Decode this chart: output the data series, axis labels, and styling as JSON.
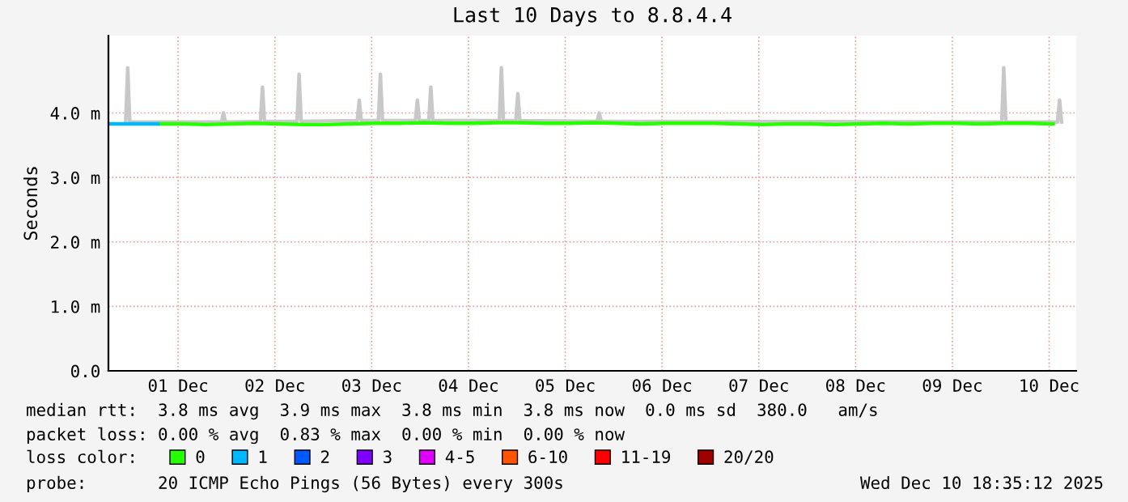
{
  "chart_data": {
    "type": "line",
    "title": "Last 10 Days to 8.8.4.4",
    "ylabel": "Seconds",
    "xlim": [
      "2025-11-30T18:43",
      "2025-12-10T18:43"
    ],
    "xticks": [
      {
        "value": "2025-12-01T12:00",
        "label": "01 Dec"
      },
      {
        "value": "2025-12-02T12:00",
        "label": "02 Dec"
      },
      {
        "value": "2025-12-03T12:00",
        "label": "03 Dec"
      },
      {
        "value": "2025-12-04T12:00",
        "label": "04 Dec"
      },
      {
        "value": "2025-12-05T12:00",
        "label": "05 Dec"
      },
      {
        "value": "2025-12-06T12:00",
        "label": "06 Dec"
      },
      {
        "value": "2025-12-07T12:00",
        "label": "07 Dec"
      },
      {
        "value": "2025-12-08T12:00",
        "label": "08 Dec"
      },
      {
        "value": "2025-12-09T12:00",
        "label": "09 Dec"
      },
      {
        "value": "2025-12-10T12:00",
        "label": "10 Dec"
      }
    ],
    "ylim": [
      0,
      5.2
    ],
    "yticks": [
      {
        "value": 0,
        "label": "0.0"
      },
      {
        "value": 1,
        "label": "1.0 m"
      },
      {
        "value": 2,
        "label": "2.0 m"
      },
      {
        "value": 3,
        "label": "3.0 m"
      },
      {
        "value": 4,
        "label": "4.0 m"
      }
    ],
    "grid": true,
    "legend": "bottom",
    "legend_title": "loss color:",
    "marker": "none",
    "line_style": "solid",
    "x": [
      "2025-11-30T19:00",
      "2025-12-01T01:00",
      "2025-12-01T07:00",
      "2025-12-01T13:00",
      "2025-12-01T19:00",
      "2025-12-02T01:00",
      "2025-12-02T07:00",
      "2025-12-02T13:00",
      "2025-12-02T19:00",
      "2025-12-03T01:00",
      "2025-12-03T07:00",
      "2025-12-03T13:00",
      "2025-12-03T19:00",
      "2025-12-04T01:00",
      "2025-12-04T07:00",
      "2025-12-04T13:00",
      "2025-12-04T19:00",
      "2025-12-05T01:00",
      "2025-12-05T07:00",
      "2025-12-05T13:00",
      "2025-12-05T19:00",
      "2025-12-06T01:00",
      "2025-12-06T07:00",
      "2025-12-06T13:00",
      "2025-12-06T19:00",
      "2025-12-07T01:00",
      "2025-12-07T07:00",
      "2025-12-07T13:00",
      "2025-12-07T19:00",
      "2025-12-08T01:00",
      "2025-12-08T07:00",
      "2025-12-08T13:00",
      "2025-12-08T19:00",
      "2025-12-09T01:00",
      "2025-12-09T07:00",
      "2025-12-09T13:00",
      "2025-12-09T19:00",
      "2025-12-10T01:00",
      "2025-12-10T07:00",
      "2025-12-10T13:00"
    ],
    "series": [
      {
        "color": "#c8c8c8",
        "x": [
          "2025-11-30T23:00",
          "2025-11-30T23:30",
          "2025-12-01T00:00",
          "2025-12-01T22:45",
          "2025-12-01T23:15",
          "2025-12-01T23:45",
          "2025-12-02T08:25",
          "2025-12-02T08:55",
          "2025-12-02T09:25",
          "2025-12-02T17:30",
          "2025-12-02T18:00",
          "2025-12-02T18:30",
          "2025-12-03T08:25",
          "2025-12-03T08:55",
          "2025-12-03T09:25",
          "2025-12-03T13:40",
          "2025-12-03T14:10",
          "2025-12-03T14:40",
          "2025-12-03T22:50",
          "2025-12-03T23:20",
          "2025-12-03T23:50",
          "2025-12-04T02:10",
          "2025-12-04T02:40",
          "2025-12-04T03:10",
          "2025-12-04T19:40",
          "2025-12-04T20:10",
          "2025-12-04T20:40",
          "2025-12-04T23:45",
          "2025-12-05T00:15",
          "2025-12-05T00:45",
          "2025-12-05T19:55",
          "2025-12-05T20:25",
          "2025-12-05T20:55",
          "2025-12-10T00:15",
          "2025-12-10T00:45",
          "2025-12-10T01:15",
          "2025-12-10T14:05",
          "2025-12-10T14:35",
          "2025-12-10T15:05"
        ],
        "values": [
          3.86,
          4.7,
          3.86,
          3.86,
          4.0,
          3.86,
          3.87,
          4.4,
          3.87,
          3.87,
          4.6,
          3.87,
          3.88,
          4.2,
          3.88,
          3.88,
          4.6,
          3.88,
          3.88,
          4.2,
          3.88,
          3.88,
          4.4,
          3.88,
          3.88,
          4.7,
          3.88,
          3.88,
          4.3,
          3.88,
          3.87,
          4.0,
          3.87,
          3.86,
          4.7,
          3.86,
          3.86,
          4.2,
          3.86
        ]
      },
      {
        "name": "0",
        "color": "#26ff00",
        "values": [
          null,
          null,
          3.83,
          3.83,
          3.82,
          3.83,
          3.84,
          3.83,
          3.82,
          3.82,
          3.83,
          3.84,
          3.84,
          3.85,
          3.84,
          3.84,
          3.85,
          3.85,
          3.84,
          3.84,
          3.85,
          3.84,
          3.83,
          3.84,
          3.84,
          3.84,
          3.83,
          3.82,
          3.83,
          3.83,
          3.82,
          3.83,
          3.84,
          3.83,
          3.84,
          3.84,
          3.83,
          3.84,
          3.84,
          3.83
        ]
      },
      {
        "name": "1",
        "color": "#00b8ff",
        "values": [
          3.83,
          3.83,
          3.83,
          null,
          null,
          null,
          null,
          null,
          null,
          null,
          null,
          null,
          null,
          null,
          null,
          null,
          null,
          null,
          null,
          null,
          null,
          null,
          null,
          null,
          null,
          null,
          null,
          null,
          null,
          null,
          null,
          null,
          null,
          null,
          null,
          null,
          null,
          null,
          null,
          null
        ]
      },
      {
        "name": "2",
        "color": "#0059ff",
        "values": [
          null,
          null,
          null,
          null,
          null,
          null,
          null,
          null,
          null,
          null,
          null,
          null,
          null,
          null,
          null,
          null,
          null,
          null,
          null,
          null,
          null,
          null,
          null,
          null,
          null,
          null,
          null,
          null,
          null,
          null,
          null,
          null,
          null,
          null,
          null,
          null,
          null,
          null,
          null,
          null
        ]
      },
      {
        "name": "3",
        "color": "#7e00ff",
        "values": [
          null,
          null,
          null,
          null,
          null,
          null,
          null,
          null,
          null,
          null,
          null,
          null,
          null,
          null,
          null,
          null,
          null,
          null,
          null,
          null,
          null,
          null,
          null,
          null,
          null,
          null,
          null,
          null,
          null,
          null,
          null,
          null,
          null,
          null,
          null,
          null,
          null,
          null,
          null,
          null
        ]
      },
      {
        "name": "4-5",
        "color": "#e000ff",
        "values": [
          null,
          null,
          null,
          null,
          null,
          null,
          null,
          null,
          null,
          null,
          null,
          null,
          null,
          null,
          null,
          null,
          null,
          null,
          null,
          null,
          null,
          null,
          null,
          null,
          null,
          null,
          null,
          null,
          null,
          null,
          null,
          null,
          null,
          null,
          null,
          null,
          null,
          null,
          null,
          null
        ]
      },
      {
        "name": "6-10",
        "color": "#ff5500",
        "values": [
          null,
          null,
          null,
          null,
          null,
          null,
          null,
          null,
          null,
          null,
          null,
          null,
          null,
          null,
          null,
          null,
          null,
          null,
          null,
          null,
          null,
          null,
          null,
          null,
          null,
          null,
          null,
          null,
          null,
          null,
          null,
          null,
          null,
          null,
          null,
          null,
          null,
          null,
          null,
          null
        ]
      },
      {
        "name": "11-19",
        "color": "#ff0000",
        "values": [
          null,
          null,
          null,
          null,
          null,
          null,
          null,
          null,
          null,
          null,
          null,
          null,
          null,
          null,
          null,
          null,
          null,
          null,
          null,
          null,
          null,
          null,
          null,
          null,
          null,
          null,
          null,
          null,
          null,
          null,
          null,
          null,
          null,
          null,
          null,
          null,
          null,
          null,
          null,
          null
        ]
      },
      {
        "name": "20/20",
        "color": "#a10000",
        "values": [
          null,
          null,
          null,
          null,
          null,
          null,
          null,
          null,
          null,
          null,
          null,
          null,
          null,
          null,
          null,
          null,
          null,
          null,
          null,
          null,
          null,
          null,
          null,
          null,
          null,
          null,
          null,
          null,
          null,
          null,
          null,
          null,
          null,
          null,
          null,
          null,
          null,
          null,
          null,
          null
        ]
      }
    ],
    "annotations": [
      "median rtt:  3.8 ms avg  3.9 ms max  3.8 ms min  3.8 ms now  0.0 ms sd  380.0   am/s",
      "packet loss: 0.00 % avg  0.83 % max  0.00 % min  0.00 % now",
      "probe:       20 ICMP Echo Pings (56 Bytes) every 300s",
      "Wed Dec 10 18:35:12 2025"
    ]
  }
}
